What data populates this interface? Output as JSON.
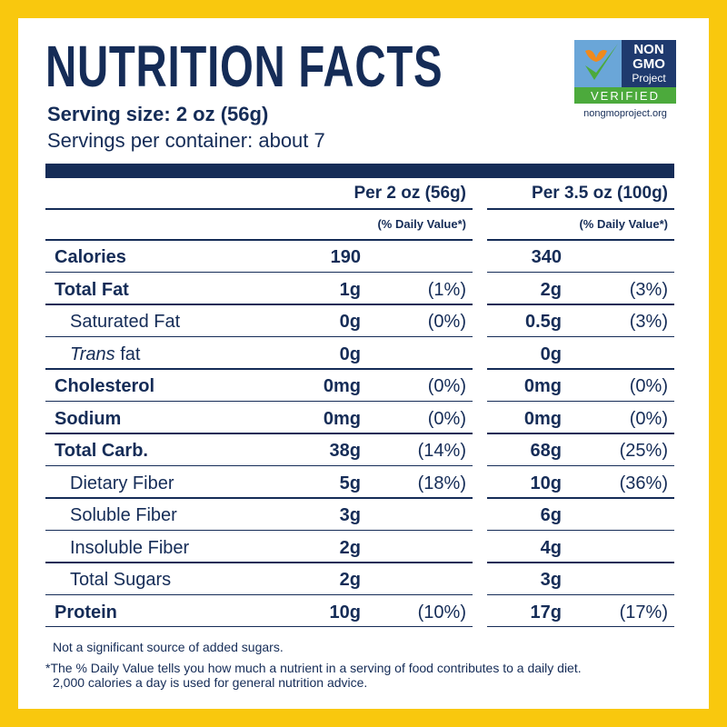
{
  "header": {
    "title": "NUTRITION FACTS",
    "serving_size": "Serving size: 2 oz (56g)",
    "servings": "Servings per container: about 7"
  },
  "logo": {
    "line1": "NON",
    "line2": "GMO",
    "line3": "Project",
    "badge": "VERIFIED",
    "url": "nongmoproject.org"
  },
  "table": {
    "columns": [
      "Per 2 oz (56g)",
      "Per 3.5 oz (100g)"
    ],
    "daily_value": [
      "(% Daily Value*)",
      "(% Daily Value*)"
    ],
    "rows": [
      {
        "name": "Calories",
        "a1": "190",
        "a2": "340"
      },
      {
        "name": "Total Fat",
        "a1": "1g",
        "p1": "(1%)",
        "a2": "2g",
        "p2": "(3%)"
      },
      {
        "name": "Saturated Fat",
        "a1": "0g",
        "p1": "(0%)",
        "a2": "0.5g",
        "p2": "(3%)"
      },
      {
        "name_prefix": "Trans",
        "name": "fat",
        "a1": "0g",
        "a2": "0g"
      },
      {
        "name": "Cholesterol",
        "a1": "0mg",
        "p1": "(0%)",
        "a2": "0mg",
        "p2": "(0%)"
      },
      {
        "name": "Sodium",
        "a1": "0mg",
        "p1": "(0%)",
        "a2": "0mg",
        "p2": "(0%)"
      },
      {
        "name": "Total Carb.",
        "a1": "38g",
        "p1": "(14%)",
        "a2": "68g",
        "p2": "(25%)"
      },
      {
        "name": "Dietary Fiber",
        "a1": "5g",
        "p1": "(18%)",
        "a2": "10g",
        "p2": "(36%)"
      },
      {
        "name": "Soluble Fiber",
        "a1": "3g",
        "a2": "6g"
      },
      {
        "name": "Insoluble Fiber",
        "a1": "2g",
        "a2": "4g"
      },
      {
        "name": "Total Sugars",
        "a1": "2g",
        "a2": "3g"
      },
      {
        "name": "Protein",
        "a1": "10g",
        "p1": "(10%)",
        "a2": "17g",
        "p2": "(17%)"
      }
    ]
  },
  "footnotes": [
    "Not a significant source of added sugars.",
    "*The % Daily Value tells you how much a nutrient in a serving of food contributes to a daily diet.",
    "2,000 calories a day is used for general nutrition advice."
  ]
}
